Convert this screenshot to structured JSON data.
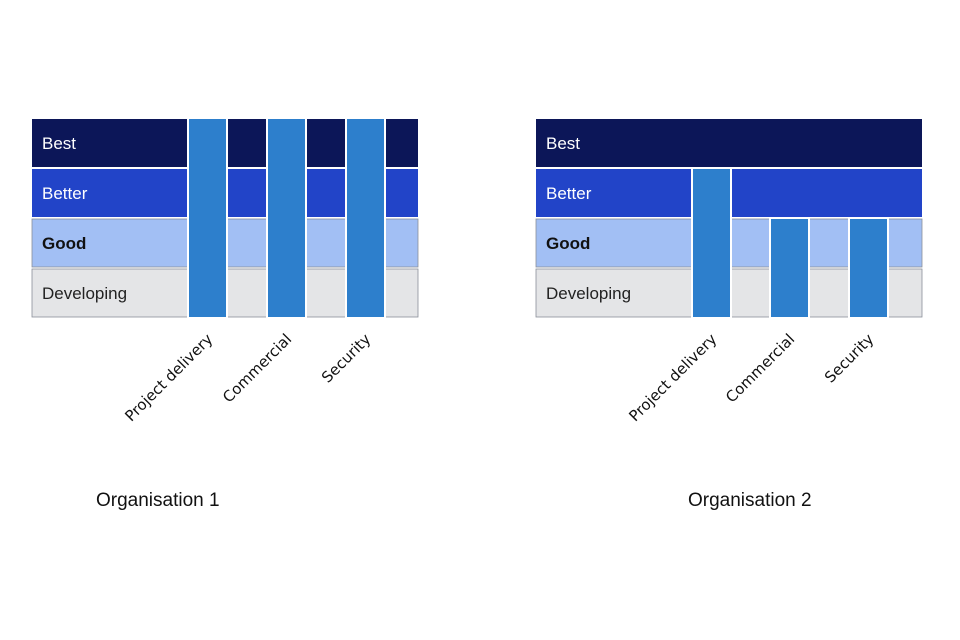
{
  "chart_data": [
    {
      "type": "bar",
      "title": "Organisation 1",
      "levels": [
        "Developing",
        "Good",
        "Better",
        "Best"
      ],
      "categories": [
        "Project delivery",
        "Commercial",
        "Security"
      ],
      "values": [
        4,
        4,
        4
      ],
      "ylim": [
        0,
        4
      ],
      "xlabel": "",
      "ylabel": ""
    },
    {
      "type": "bar",
      "title": "Organisation 2",
      "levels": [
        "Developing",
        "Good",
        "Better",
        "Best"
      ],
      "categories": [
        "Project delivery",
        "Commercial",
        "Security"
      ],
      "values": [
        3,
        2,
        2
      ],
      "ylim": [
        0,
        4
      ],
      "xlabel": "",
      "ylabel": ""
    }
  ],
  "colors": {
    "best": "#0c1658",
    "better": "#2244c8",
    "good": "#a2bff4",
    "developing": "#e4e5e7",
    "bar": "#2d7fcc",
    "bar_outline": "#ffffff"
  }
}
